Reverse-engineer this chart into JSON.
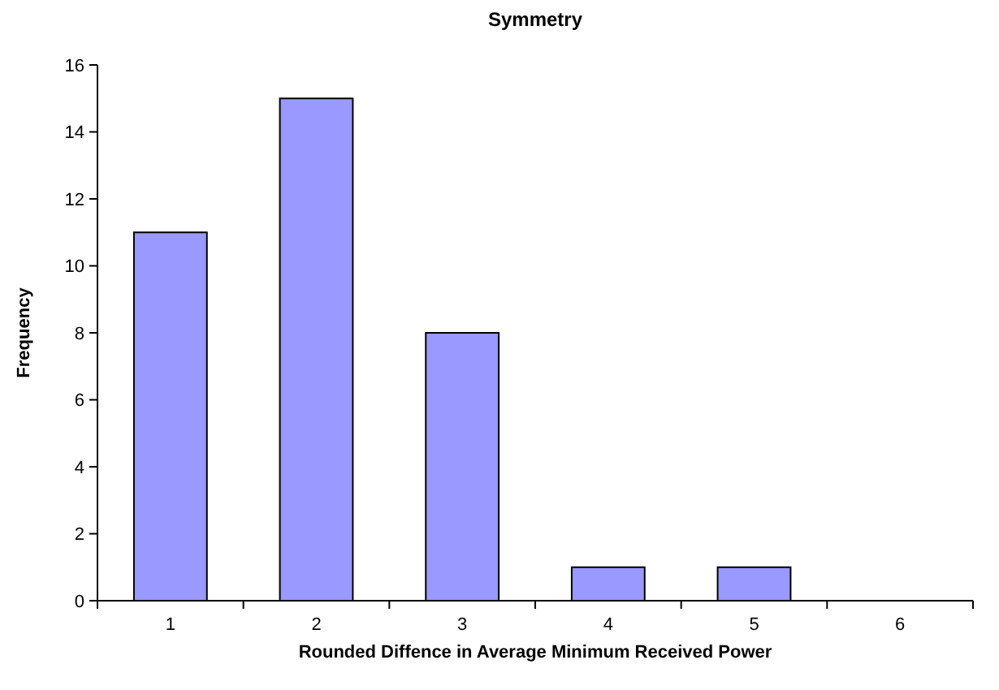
{
  "chart_data": {
    "type": "bar",
    "title": "Symmetry",
    "xlabel": "Rounded Diffence in Average Minimum Received Power",
    "ylabel": "Frequency",
    "categories": [
      "1",
      "2",
      "3",
      "4",
      "5",
      "6"
    ],
    "values": [
      11,
      15,
      8,
      1,
      1,
      0
    ],
    "color": "#9999ff",
    "ylim": [
      0,
      16
    ],
    "yticks": [
      0,
      2,
      4,
      6,
      8,
      10,
      12,
      14,
      16
    ],
    "grid": false
  }
}
